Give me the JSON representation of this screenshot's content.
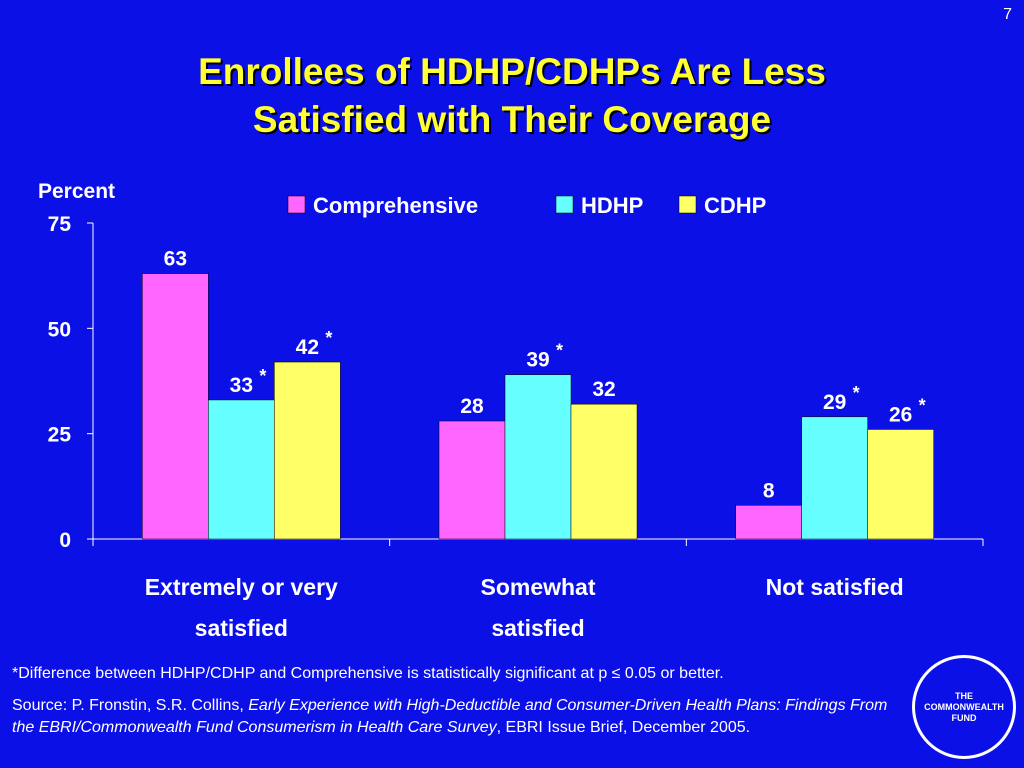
{
  "slide_number": "7",
  "title": {
    "line1": "Enrollees of HDHP/CDHPs Are Less",
    "line2": "Satisfied with Their Coverage"
  },
  "colors": {
    "background": "#0b10e6",
    "title": "#ffff33",
    "comprehensive": "#ff66ff",
    "hdhp": "#66ffff",
    "cdhp": "#ffff66"
  },
  "chart_data": {
    "type": "bar",
    "ylabel": "Percent",
    "ylim": [
      0,
      75
    ],
    "yticks": [
      0,
      25,
      50,
      75
    ],
    "categories": [
      [
        "Extremely or very",
        "satisfied"
      ],
      [
        "Somewhat",
        "satisfied"
      ],
      [
        "Not satisfied"
      ]
    ],
    "legend_position": "top",
    "series": [
      {
        "name": "Comprehensive",
        "color": "#ff66ff",
        "values": [
          63,
          28,
          8
        ],
        "significant": [
          false,
          false,
          false
        ]
      },
      {
        "name": "HDHP",
        "color": "#66ffff",
        "values": [
          33,
          39,
          29
        ],
        "significant": [
          true,
          true,
          true
        ]
      },
      {
        "name": "CDHP",
        "color": "#ffff66",
        "values": [
          42,
          32,
          26
        ],
        "significant": [
          true,
          false,
          true
        ]
      }
    ],
    "significance_marker": "*"
  },
  "footnote": "*Difference between HDHP/CDHP and Comprehensive is statistically significant at p ≤ 0.05 or better.",
  "source": {
    "prefix": "Source: P. Fronstin, S.R. Collins, ",
    "italic": "Early Experience with High-Deductible and Consumer-Driven Health Plans: Findings From the EBRI/Commonwealth Fund Consumerism in Health Care Survey",
    "suffix": ", EBRI Issue Brief, December 2005."
  },
  "logo": {
    "line1": "THE",
    "line2": "COMMONWEALTH",
    "line3": "FUND"
  }
}
